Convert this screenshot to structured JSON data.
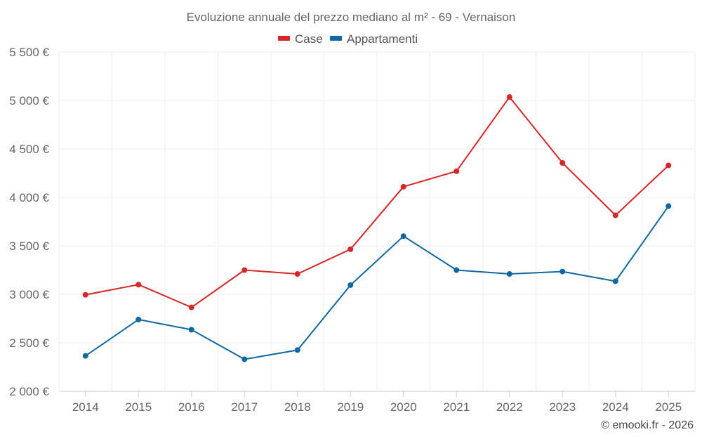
{
  "chart_data": {
    "type": "line",
    "title": "Evoluzione annuale del prezzo mediano al m² - 69 - Vernaison",
    "categories": [
      "2014",
      "2015",
      "2016",
      "2017",
      "2018",
      "2019",
      "2020",
      "2021",
      "2022",
      "2023",
      "2024",
      "2025"
    ],
    "series": [
      {
        "name": "Case",
        "color": "#d62728",
        "values": [
          2995,
          3100,
          2865,
          3250,
          3210,
          3465,
          4110,
          4270,
          5035,
          4355,
          3815,
          4330
        ]
      },
      {
        "name": "Appartamenti",
        "color": "#1167a0",
        "values": [
          2365,
          2740,
          2635,
          2330,
          2425,
          3095,
          3600,
          3250,
          3210,
          3235,
          3135,
          3910
        ]
      }
    ],
    "ylim": [
      2000,
      5500
    ],
    "yticks": [
      2000,
      2500,
      3000,
      3500,
      4000,
      4500,
      5000,
      5500
    ],
    "ytick_labels": [
      "2 000 €",
      "2 500 €",
      "3 000 €",
      "3 500 €",
      "4 000 €",
      "4 500 €",
      "5 000 €",
      "5 500 €"
    ],
    "xlabel": "",
    "ylabel": "",
    "grid": true,
    "legend_position": "top-center",
    "credit": "© emooki.fr - 2026"
  }
}
